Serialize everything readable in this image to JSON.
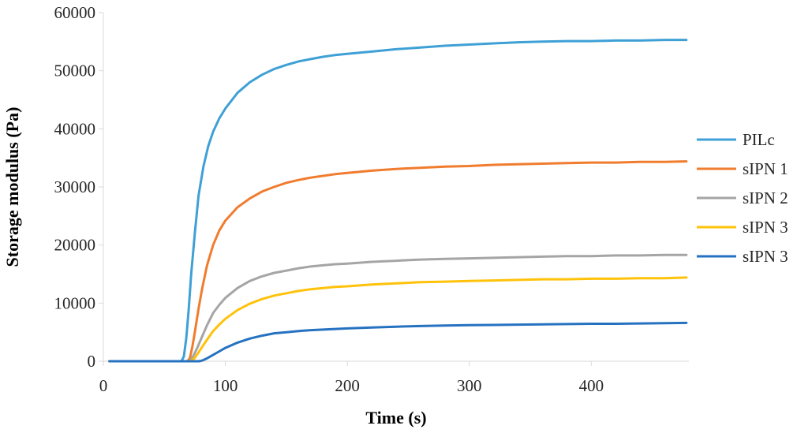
{
  "chart_data": {
    "type": "line",
    "xlabel": "Time (s)",
    "ylabel": "Storage modulus (Pa)",
    "xlim": [
      0,
      480
    ],
    "ylim": [
      0,
      60000
    ],
    "x_ticks": [
      "0",
      "100",
      "200",
      "300",
      "400"
    ],
    "y_ticks": [
      "0",
      "10000",
      "20000",
      "30000",
      "40000",
      "50000",
      "60000"
    ],
    "grid": false,
    "legend": "right",
    "series": [
      {
        "name": "PILc",
        "color": "#3FA0D6",
        "x": [
          5,
          60,
          64,
          66,
          68,
          70,
          72,
          75,
          78,
          82,
          86,
          90,
          95,
          100,
          110,
          120,
          130,
          140,
          150,
          160,
          170,
          180,
          190,
          200,
          220,
          240,
          260,
          280,
          300,
          320,
          340,
          360,
          380,
          400,
          420,
          440,
          460,
          478
        ],
        "y": [
          0,
          0,
          0,
          800,
          4000,
          9000,
          15000,
          22000,
          28500,
          33500,
          37000,
          39500,
          41800,
          43500,
          46200,
          48000,
          49300,
          50300,
          51000,
          51600,
          52000,
          52400,
          52700,
          52900,
          53300,
          53700,
          54000,
          54300,
          54500,
          54700,
          54900,
          55000,
          55100,
          55100,
          55200,
          55200,
          55300,
          55300
        ]
      },
      {
        "name": "sIPN 1",
        "color": "#F07C2E",
        "x": [
          5,
          66,
          69,
          71,
          73,
          75,
          78,
          81,
          85,
          90,
          95,
          100,
          110,
          120,
          130,
          140,
          150,
          160,
          170,
          180,
          190,
          200,
          220,
          240,
          260,
          280,
          300,
          320,
          340,
          360,
          380,
          400,
          420,
          440,
          460,
          478
        ],
        "y": [
          0,
          0,
          0,
          600,
          2500,
          5000,
          9000,
          12500,
          16500,
          20000,
          22500,
          24200,
          26500,
          28000,
          29200,
          30000,
          30700,
          31200,
          31600,
          31900,
          32200,
          32400,
          32800,
          33100,
          33300,
          33500,
          33600,
          33800,
          33900,
          34000,
          34100,
          34200,
          34200,
          34300,
          34300,
          34400
        ]
      },
      {
        "name": "sIPN 2",
        "color": "#A5A5A5",
        "x": [
          5,
          66,
          70,
          72,
          74,
          77,
          80,
          85,
          90,
          95,
          100,
          110,
          120,
          130,
          140,
          150,
          160,
          170,
          180,
          190,
          200,
          220,
          240,
          260,
          280,
          300,
          320,
          340,
          360,
          380,
          400,
          420,
          440,
          460,
          478
        ],
        "y": [
          0,
          0,
          0,
          300,
          1000,
          2300,
          3800,
          6200,
          8300,
          9700,
          10900,
          12600,
          13800,
          14600,
          15200,
          15600,
          16000,
          16300,
          16500,
          16700,
          16800,
          17100,
          17300,
          17500,
          17600,
          17700,
          17800,
          17900,
          18000,
          18100,
          18100,
          18200,
          18200,
          18300,
          18300
        ]
      },
      {
        "name": "sIPN 3",
        "color": "#FFC20A",
        "x": [
          5,
          66,
          70,
          73,
          75,
          78,
          82,
          86,
          90,
          95,
          100,
          110,
          120,
          130,
          140,
          150,
          160,
          170,
          180,
          190,
          200,
          220,
          240,
          260,
          280,
          300,
          320,
          340,
          360,
          380,
          400,
          420,
          440,
          460,
          478
        ],
        "y": [
          0,
          0,
          0,
          200,
          600,
          1500,
          2800,
          4000,
          5200,
          6300,
          7300,
          8800,
          9900,
          10700,
          11300,
          11700,
          12100,
          12400,
          12600,
          12800,
          12900,
          13200,
          13400,
          13600,
          13700,
          13800,
          13900,
          14000,
          14100,
          14100,
          14200,
          14200,
          14300,
          14300,
          14400
        ]
      },
      {
        "name": "sIPN 3",
        "color": "#2672C1",
        "x": [
          5,
          75,
          78,
          80,
          82,
          85,
          90,
          95,
          100,
          110,
          120,
          130,
          140,
          150,
          160,
          170,
          180,
          190,
          200,
          220,
          240,
          260,
          280,
          300,
          320,
          340,
          360,
          380,
          400,
          420,
          440,
          460,
          478
        ],
        "y": [
          0,
          0,
          0,
          50,
          200,
          500,
          1100,
          1700,
          2300,
          3200,
          3900,
          4400,
          4800,
          5000,
          5200,
          5350,
          5450,
          5550,
          5650,
          5800,
          5950,
          6050,
          6150,
          6200,
          6250,
          6300,
          6350,
          6400,
          6450,
          6450,
          6500,
          6550,
          6600
        ]
      }
    ]
  }
}
